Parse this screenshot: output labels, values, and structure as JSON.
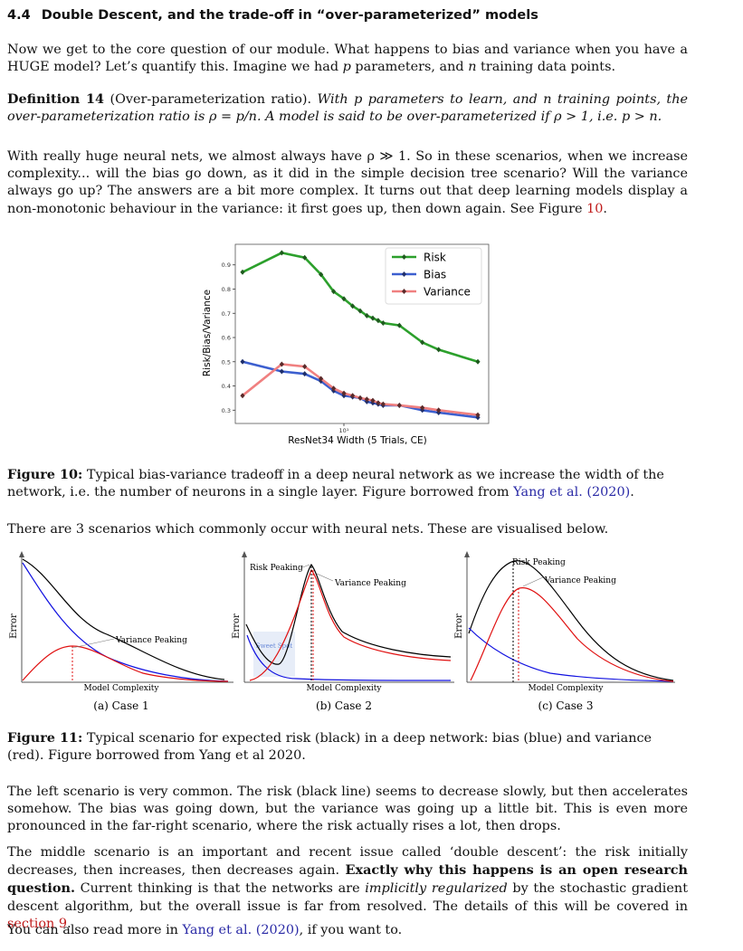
{
  "section": {
    "number": "4.4",
    "title": "Double Descent, and the trade-off in “over-parameterized” models"
  },
  "intro": {
    "text1": "Now we get to the core question of our module. What happens to bias and variance when you have a HUGE model? Let’s quantify this. Imagine we had ",
    "p": "p",
    "text2": " parameters, and ",
    "n": "n",
    "text3": " training data points."
  },
  "definition": {
    "label": "Definition 14",
    "name": "(Over-parameterization ratio).",
    "text_a": "With p parameters to learn, and n training points, the over-parameterization ratio is ρ = p/n. A model is said to be over-parameterized if ρ > 1, i.e. p > n."
  },
  "para2": {
    "text": "With really huge neural nets, we almost always have ρ ≫ 1. So in these scenarios, when we increase complexity... will the bias go down, as it did in the simple decision tree scenario? Will the variance always go up? The answers are a bit more complex. It turns out that deep learning models display a non-monotonic behaviour in the variance: it first goes up, then down again. See Figure ",
    "fig_ref": "10",
    "end": "."
  },
  "figure10": {
    "caption_label": "Figure 10:",
    "caption_text": " Typical bias-variance tradeoff in a deep neural network as we increase the width of the network, i.e. the number of neurons in a single layer. Figure borrowed from ",
    "caption_cite": "Yang et al.",
    "caption_year": "(2020)",
    "caption_end": "."
  },
  "chart_data": {
    "type": "line",
    "xlabel": "ResNet34 Width (5 Trials, CE)",
    "ylabel": "Risk/Bias/Variance",
    "x_tick_label": "10¹",
    "yticks": [
      0.3,
      0.4,
      0.5,
      0.6,
      0.7,
      0.8,
      0.9
    ],
    "ylim": [
      0.26,
      0.97
    ],
    "x_log": true,
    "x": [
      1,
      2,
      3,
      4,
      5,
      6,
      7,
      8,
      9,
      10,
      11,
      12,
      16,
      18,
      22,
      24,
      28,
      32,
      48,
      56,
      100
    ],
    "legend_position": "top-right",
    "series": [
      {
        "name": "Risk",
        "color": "#2ca02c",
        "marker_color": "#1e5a1e",
        "x": [
          1,
          2,
          3,
          4,
          5,
          6,
          7,
          8,
          9,
          10,
          11,
          12,
          16,
          24,
          32,
          64
        ],
        "values": [
          0.87,
          0.95,
          0.93,
          0.86,
          0.79,
          0.76,
          0.73,
          0.71,
          0.69,
          0.68,
          0.67,
          0.66,
          0.65,
          0.58,
          0.55,
          0.5
        ]
      },
      {
        "name": "Bias",
        "color": "#3c5fcf",
        "marker_color": "#1e2e6a",
        "x": [
          1,
          2,
          3,
          4,
          5,
          6,
          7,
          8,
          9,
          10,
          11,
          12,
          16,
          24,
          32,
          64
        ],
        "values": [
          0.5,
          0.46,
          0.45,
          0.42,
          0.38,
          0.36,
          0.355,
          0.35,
          0.335,
          0.33,
          0.325,
          0.32,
          0.32,
          0.3,
          0.29,
          0.27
        ]
      },
      {
        "name": "Variance",
        "color": "#f08080",
        "marker_color": "#5a2a2a",
        "x": [
          1,
          2,
          3,
          4,
          5,
          6,
          7,
          8,
          9,
          10,
          11,
          12,
          16,
          24,
          32,
          64
        ],
        "values": [
          0.36,
          0.49,
          0.48,
          0.43,
          0.39,
          0.37,
          0.36,
          0.35,
          0.345,
          0.34,
          0.33,
          0.325,
          0.32,
          0.31,
          0.3,
          0.28
        ]
      }
    ]
  },
  "para3": {
    "text": "There are 3 scenarios which commonly occur with neural nets. These are visualised below."
  },
  "figure11": {
    "panels": [
      {
        "axis_y": "Error",
        "axis_x": "Model Complexity",
        "caption": "(a) Case 1",
        "labels": [
          "Variance Peaking"
        ]
      },
      {
        "axis_y": "Error",
        "axis_x": "Model Complexity",
        "caption": "(b) Case 2",
        "labels": [
          "Risk Peaking",
          "Variance Peaking",
          "Sweet Spot"
        ]
      },
      {
        "axis_y": "Error",
        "axis_x": "Model Complexity",
        "caption": "(c) Case 3",
        "labels": [
          "Risk Peaking",
          "Variance Peaking"
        ]
      }
    ],
    "caption_label": "Figure 11:",
    "caption_text": " Typical scenario for expected risk (black) in a deep network: bias (blue) and variance (red). Figure borrowed from Yang et al 2020."
  },
  "para4": {
    "text": "The left scenario is very common. The risk (black line) seems to decrease slowly, but then accelerates somehow. The bias was going down, but the variance was going up a little bit. This is even more pronounced in the far-right scenario, where the risk actually rises a lot, then drops."
  },
  "para5": {
    "text1": "The middle scenario is an important and recent issue called ‘double descent’: the risk initially decreases, then increases, then decreases again. ",
    "bold": "Exactly why this happens is an open research question.",
    "text2": " Current thinking is that the networks are ",
    "italic": "implicitly regularized",
    "text3": " by the stochastic gradient descent algorithm, but the overall issue is far from resolved. The details of this will be covered in ",
    "ref": "section 9",
    "end": "."
  },
  "para6": {
    "text1": "You can also read more in ",
    "cite": "Yang et al.",
    "year": "(2020)",
    "end": ", if you want to."
  },
  "colors": {
    "link": "#2a2aa6",
    "ref_red": "#c01b1b",
    "risk_black": "#000000",
    "bias_blue": "#1010e0",
    "variance_red": "#e01010"
  }
}
